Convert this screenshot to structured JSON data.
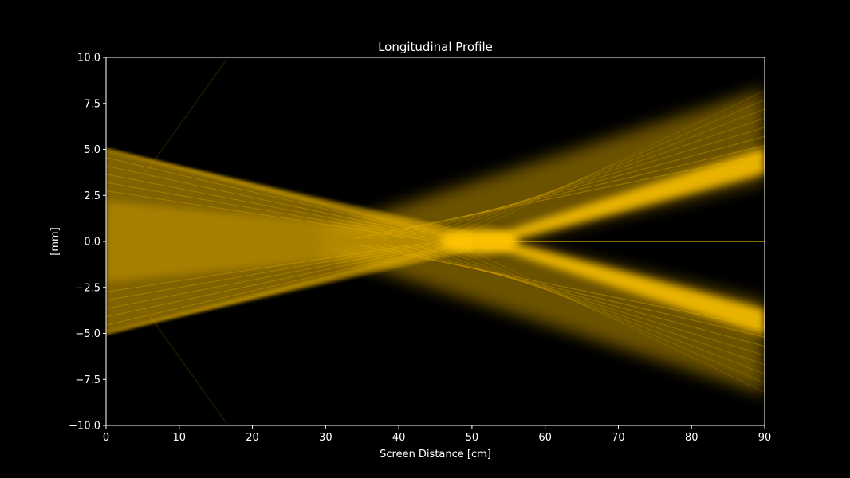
{
  "chart_data": {
    "type": "heatmap",
    "title": "Longitudinal Profile",
    "xlabel": "Screen Distance [cm]",
    "ylabel": "[mm]",
    "xlim": [
      0,
      90
    ],
    "ylim": [
      -10,
      10
    ],
    "xticks": [
      0,
      10,
      20,
      30,
      40,
      50,
      60,
      70,
      80,
      90
    ],
    "yticks": [
      -10.0,
      -7.5,
      -5.0,
      -2.5,
      0.0,
      2.5,
      5.0,
      7.5,
      10.0
    ],
    "xtick_labels": [
      "0",
      "10",
      "20",
      "30",
      "40",
      "50",
      "60",
      "70",
      "80",
      "90"
    ],
    "ytick_labels": [
      "−10.0",
      "−7.5",
      "−5.0",
      "−2.5",
      "0.0",
      "2.5",
      "5.0",
      "7.5",
      "10.0"
    ],
    "grid": false,
    "colormap": {
      "low": "#000000",
      "high": "#ffc400"
    },
    "features": {
      "aperture_half_width_mm": 5.0,
      "focus_distance_cm": 50,
      "edge_at_90cm_mm": 8.3,
      "bright_branch_at_90cm_mm": 4.2,
      "axial_line_y_mm": 0.0
    }
  },
  "colors": {
    "background": "#000000",
    "axes": "#ffffff",
    "beam": "#ffc400"
  }
}
